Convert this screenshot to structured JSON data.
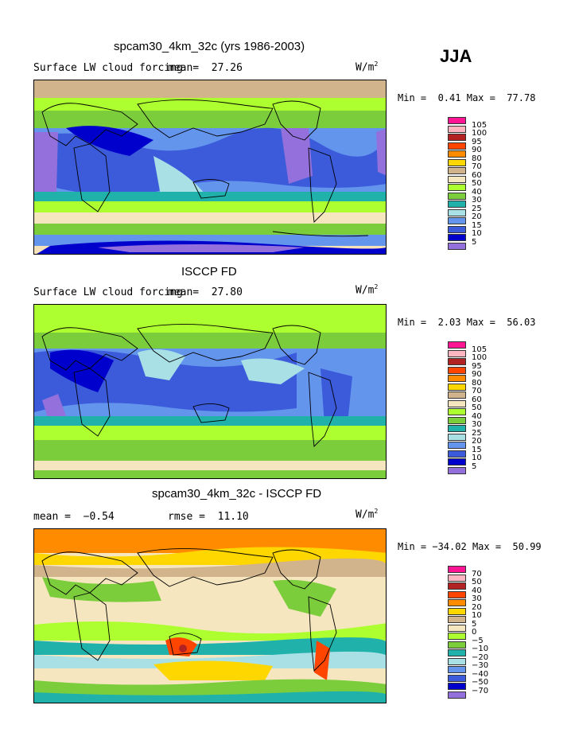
{
  "season": "JJA",
  "units_main": "W/m",
  "units_sup": "2",
  "panels": [
    {
      "title": "spcam30_4km_32c (yrs 1986-2003)",
      "subtitle": "Surface LW cloud forcing",
      "mean_label": "mean=",
      "mean_value": "27.26",
      "min_label": "Min =",
      "min_value": "0.41",
      "max_label": "Max =",
      "max_value": "77.78",
      "legend_levels": [
        "105",
        "100",
        "95",
        "90",
        "80",
        "70",
        "60",
        "50",
        "40",
        "30",
        "25",
        "20",
        "15",
        "10",
        "5"
      ]
    },
    {
      "title": "ISCCP FD",
      "subtitle": "Surface LW cloud forcing",
      "mean_label": "mean=",
      "mean_value": "27.80",
      "min_label": "Min =",
      "min_value": "2.03",
      "max_label": "Max =",
      "max_value": "56.03",
      "legend_levels": [
        "105",
        "100",
        "95",
        "90",
        "80",
        "70",
        "60",
        "50",
        "40",
        "30",
        "25",
        "20",
        "15",
        "10",
        "5"
      ]
    },
    {
      "title": "spcam30_4km_32c - ISCCP FD",
      "mean_label": "mean =",
      "mean_value": "−0.54",
      "rmse_label": "rmse =",
      "rmse_value": "11.10",
      "min_label": "Min =",
      "min_value": "−34.02",
      "max_label": "Max =",
      "max_value": "50.99",
      "legend_levels": [
        "70",
        "50",
        "40",
        "30",
        "20",
        "10",
        "5",
        "0",
        "−5",
        "−10",
        "−20",
        "−30",
        "−40",
        "−50",
        "−70"
      ]
    }
  ],
  "colors": {
    "abs_scale": [
      "#ff1493",
      "#ffb6c1",
      "#b22222",
      "#ff4500",
      "#ff8c00",
      "#ffd700",
      "#d2b48c",
      "#f5e6c0",
      "#adff2f",
      "#7ccd3c",
      "#20b2aa",
      "#a8e0e6",
      "#6495ed",
      "#3b5bdb",
      "#0000cd",
      "#9370db"
    ],
    "diff_scale": [
      "#ff1493",
      "#ffb6c1",
      "#b22222",
      "#ff4500",
      "#ff8c00",
      "#ffd700",
      "#d2b48c",
      "#f5e6c0",
      "#adff2f",
      "#7ccd3c",
      "#20b2aa",
      "#a8e0e6",
      "#6495ed",
      "#3b5bdb",
      "#0000cd",
      "#9370db"
    ]
  }
}
